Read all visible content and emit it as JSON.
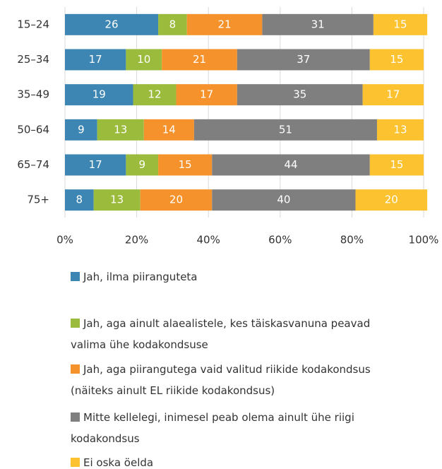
{
  "chart_data": {
    "type": "stacked-bar-horizontal",
    "categories": [
      "15–24",
      "25–34",
      "35–49",
      "50–64",
      "65–74",
      "75+"
    ],
    "series": [
      {
        "name": "Jah, ilma piiranguteta",
        "color": "#3d86b3",
        "values": [
          26,
          17,
          19,
          9,
          17,
          8
        ]
      },
      {
        "name": "Jah, aga ainult alaealistele, kes täiskasvanuna peavad valima ühe kodakondsuse",
        "color": "#9bbb3c",
        "values": [
          8,
          10,
          12,
          13,
          9,
          13
        ]
      },
      {
        "name": "Jah, aga piirangutega  vaid valitud riikide kodakondsus (näiteks ainult EL riikide kodakondsus)",
        "color": "#f5922b",
        "values": [
          21,
          21,
          17,
          14,
          15,
          20
        ]
      },
      {
        "name": "Mitte kellelegi, inimesel  peab olema ainult ühe riigi kodakondsus",
        "color": "#7f7f7f",
        "values": [
          31,
          37,
          35,
          51,
          44,
          40
        ]
      },
      {
        "name": "Ei oska öelda",
        "color": "#fcc22f",
        "values": [
          15,
          15,
          17,
          13,
          15,
          20
        ]
      }
    ],
    "xlim": [
      0,
      100
    ],
    "xticks": [
      {
        "value": 0,
        "label": "0%"
      },
      {
        "value": 20,
        "label": "20%"
      },
      {
        "value": 40,
        "label": "40%"
      },
      {
        "value": 60,
        "label": "60%"
      },
      {
        "value": 80,
        "label": "80%"
      },
      {
        "value": 100,
        "label": "100%"
      }
    ],
    "grid": true
  }
}
